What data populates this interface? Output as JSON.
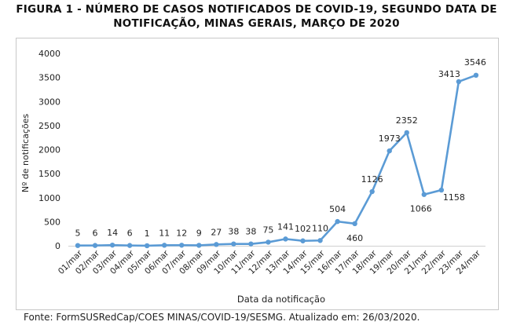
{
  "title_line1": "FIGURA 1 - NÚMERO DE CASOS NOTIFICADOS DE COVID-19, SEGUNDO DATA DE",
  "title_line2": "NOTIFICAÇÃO, MINAS GERAIS, MARÇO DE 2020",
  "source": "Fonte: FormSUSRedCap/COES MINAS/COVID-19/SESMG. Atualizado em: 26/03/2020.",
  "chart_data": {
    "type": "line",
    "xlabel": "Data da notificação",
    "ylabel": "Nº de notificações",
    "ylim": [
      0,
      4000
    ],
    "yticks": [
      "0",
      "500",
      "1000",
      "1500",
      "2000",
      "2500",
      "3000",
      "3500",
      "4000"
    ],
    "categories": [
      "01/mar",
      "02/mar",
      "03/mar",
      "04/mar",
      "05/mar",
      "06/mar",
      "07/mar",
      "08/mar",
      "09/mar",
      "10/mar",
      "11/mar",
      "12/mar",
      "13/mar",
      "14/mar",
      "15/mar",
      "16/mar",
      "17/mar",
      "18/mar",
      "19/mar",
      "20/mar",
      "21/mar",
      "22/mar",
      "23/mar",
      "24/mar"
    ],
    "values": [
      5,
      6,
      14,
      6,
      1,
      11,
      12,
      9,
      27,
      38,
      38,
      75,
      141,
      102,
      110,
      504,
      460,
      1126,
      1973,
      2352,
      1066,
      1158,
      3413,
      3546
    ],
    "labels": [
      "5",
      "6",
      "14",
      "6",
      "1",
      "11",
      "12",
      "9",
      "27",
      "38",
      "38",
      "75",
      "141",
      "102",
      "110",
      "504",
      "460",
      "1126",
      "1973",
      "2352",
      "1066",
      "1158",
      "3413",
      "3546"
    ],
    "line_color": "#5b9bd5",
    "grid": false,
    "legend": "none"
  }
}
